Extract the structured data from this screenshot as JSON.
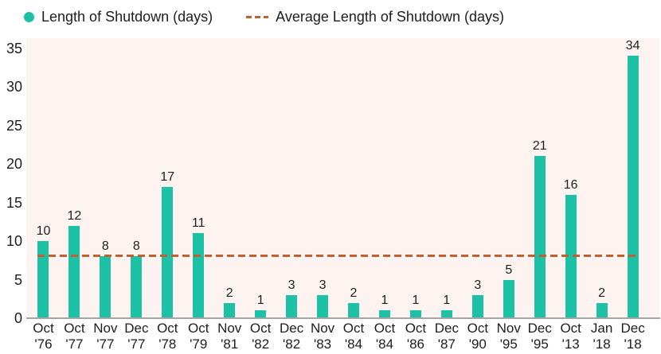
{
  "legend": {
    "bars_label": "Length of Shutdown (days)",
    "avg_label": "Average Length of Shutdown (days)"
  },
  "colors": {
    "bar": "#1dc1a6",
    "average_line": "#c1602e",
    "plot_background": "#fdf4f2",
    "axis": "#a5a5a5",
    "text": "#1d1d1d"
  },
  "chart_data": {
    "type": "bar",
    "title": "",
    "xlabel": "",
    "ylabel": "",
    "series_label": "Length of Shutdown (days)",
    "average_series_label": "Average Length of Shutdown (days)",
    "categories": [
      "Oct '76",
      "Oct '77",
      "Nov '77",
      "Dec '77",
      "Oct '78",
      "Oct '79",
      "Nov '81",
      "Oct '82",
      "Dec '82",
      "Nov '83",
      "Oct '84",
      "Oct '84",
      "Oct '86",
      "Dec '87",
      "Oct '90",
      "Nov '95",
      "Dec '95",
      "Oct '13",
      "Jan '18",
      "Dec '18"
    ],
    "values": [
      10,
      12,
      8,
      8,
      17,
      11,
      2,
      1,
      3,
      3,
      2,
      1,
      1,
      1,
      3,
      5,
      21,
      16,
      2,
      34
    ],
    "average_value": 8.05,
    "y_ticks": [
      0,
      5,
      10,
      15,
      20,
      25,
      30,
      35
    ],
    "ylim": [
      0,
      36.3
    ],
    "grid": false,
    "legend_position": "top"
  }
}
